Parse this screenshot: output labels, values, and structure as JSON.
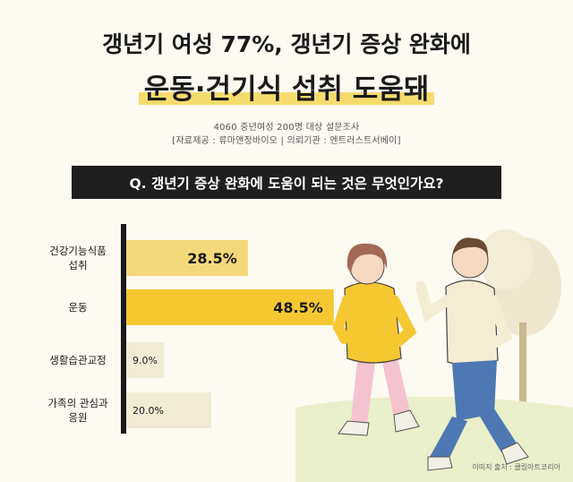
{
  "header": {
    "title_line1": "갱년기 여성 77%, 갱년기 증상 완화에",
    "title_line2": "운동·건기식 섭취 도움돼",
    "survey_line1": "4060 중년여성 200명 대상 설문조사",
    "survey_line2": "[자료제공 : 류마앤정바이오  |  의뢰기관 : 엔트러스트서베이]"
  },
  "question": "Q. 갱년기 증상 완화에 도움이 되는 것은 무엇인가요?",
  "credit": "이미지 출처 : 클립아트코리아",
  "colors": {
    "bar_highlight": "#f5c832",
    "bar_highlight_light": "#f4d87a",
    "bar_muted": "#f1ead5",
    "axis": "#1a1a1a",
    "highlight_band": "#f6dc6e"
  },
  "chart_data": {
    "type": "bar",
    "orientation": "horizontal",
    "categories": [
      [
        "건강기능식품",
        "섭취"
      ],
      [
        "운동"
      ],
      [
        "생활습관교정"
      ],
      [
        "가족의 관심과",
        "응원"
      ]
    ],
    "values": [
      28.5,
      48.5,
      9.0,
      20.0
    ],
    "value_labels": [
      "28.5%",
      "48.5%",
      "9.0%",
      "20.0%"
    ],
    "unit": "%",
    "xlim": [
      0,
      50
    ],
    "grid": false,
    "legend": "none"
  }
}
